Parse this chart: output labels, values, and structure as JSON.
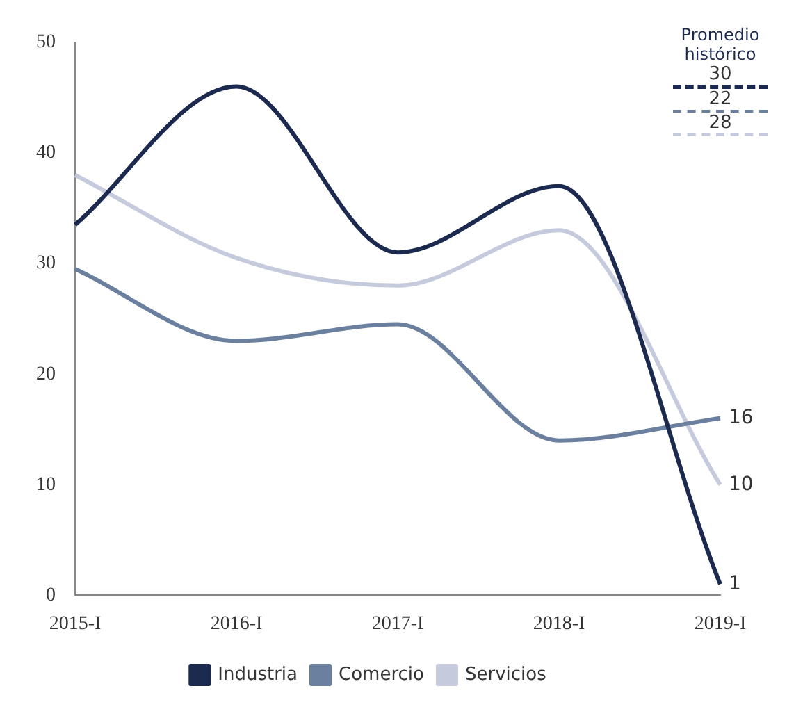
{
  "chart_data": {
    "type": "line",
    "categories": [
      "2015-I",
      "2016-I",
      "2017-I",
      "2018-I",
      "2019-I"
    ],
    "series": [
      {
        "name": "Industria",
        "color": "#1b2a4e",
        "values": [
          33.5,
          46,
          31,
          37,
          1
        ],
        "value_labels": [
          null,
          null,
          null,
          null,
          "1"
        ]
      },
      {
        "name": "Comercio",
        "color": "#6b7f9e",
        "values": [
          29.5,
          23,
          24.5,
          14,
          16
        ],
        "value_labels": [
          null,
          null,
          null,
          null,
          "16"
        ]
      },
      {
        "name": "Servicios",
        "color": "#c5cbdc",
        "values": [
          38,
          30.5,
          28,
          33,
          10
        ],
        "value_labels": [
          null,
          null,
          null,
          null,
          "10"
        ]
      }
    ],
    "ylim": [
      0,
      50
    ],
    "yticks": [
      0,
      10,
      20,
      30,
      40,
      50
    ],
    "grid": false,
    "legend": "bottom",
    "marker": "none",
    "line_style": "solid",
    "annotations": [
      "Promedio histórico",
      "30",
      "22",
      "28"
    ]
  }
}
